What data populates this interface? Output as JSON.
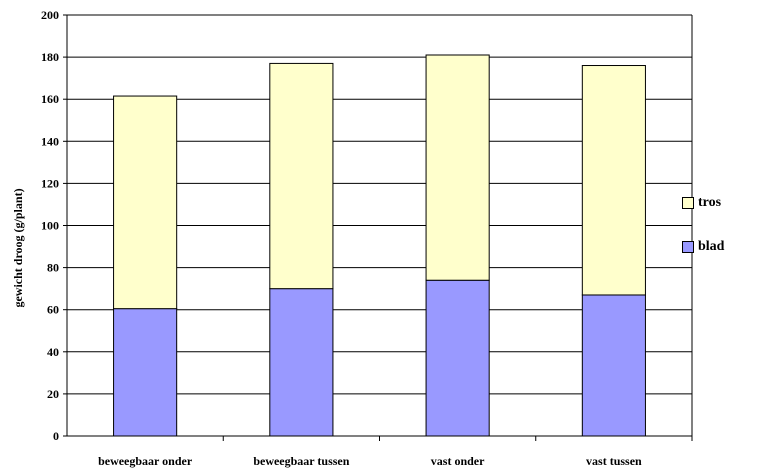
{
  "chart_data": {
    "type": "bar",
    "stacked": true,
    "categories": [
      "beweegbaar onder",
      "beweegbaar tussen",
      "vast onder",
      "vast tussen"
    ],
    "series": [
      {
        "name": "blad",
        "values": [
          60.5,
          70,
          74,
          67
        ],
        "color": "#9999ff"
      },
      {
        "name": "tros",
        "values": [
          101,
          107,
          107,
          109
        ],
        "color": "#ffffcc"
      }
    ],
    "ylabel": "gewicht droog (g/plant)",
    "ylim": [
      0,
      200
    ],
    "yticks": [
      "0",
      "20",
      "40",
      "60",
      "80",
      "100",
      "120",
      "140",
      "160",
      "180",
      "200"
    ],
    "grid": true,
    "legend_position": "right"
  }
}
